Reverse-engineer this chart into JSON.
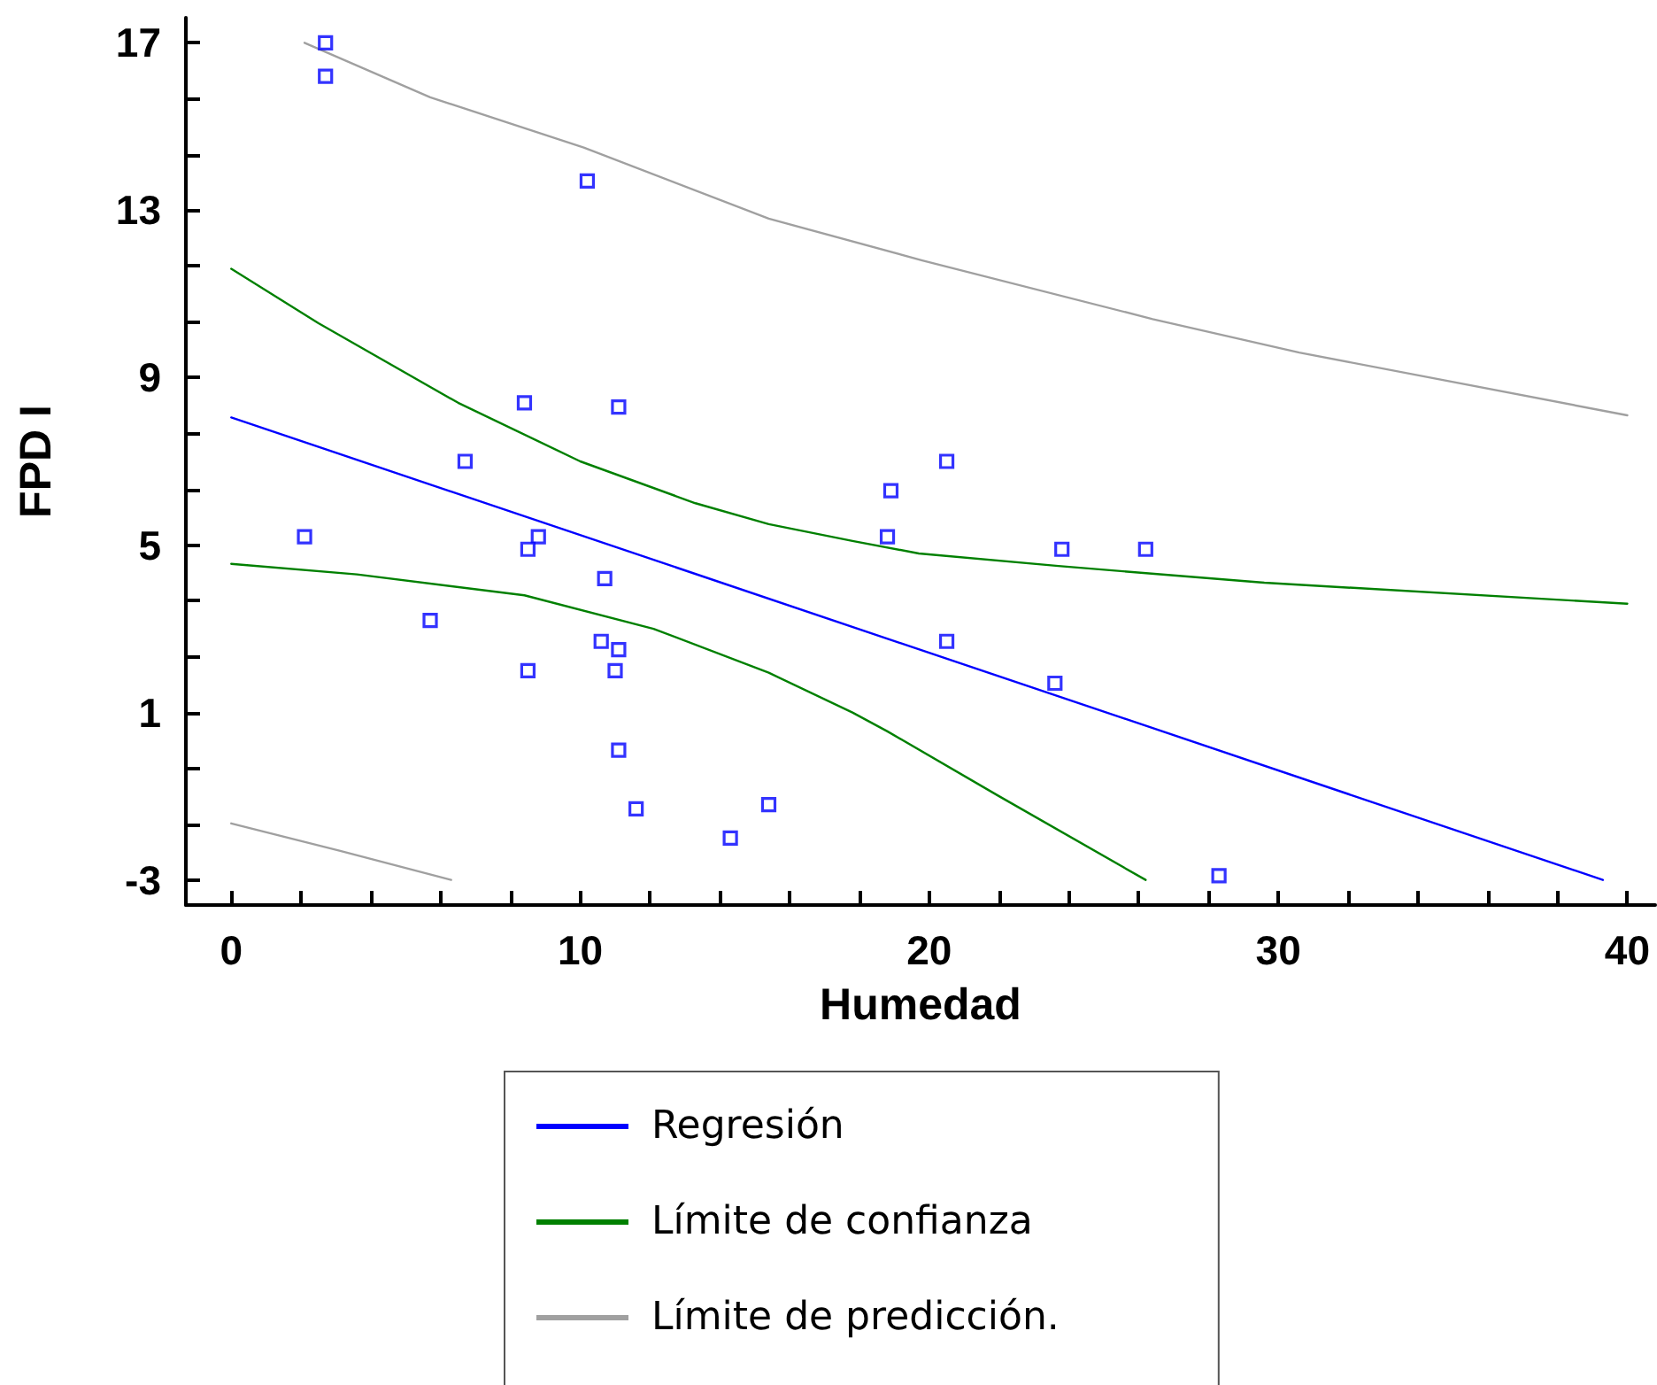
{
  "chart_data": {
    "type": "scatter",
    "xlabel": "Humedad",
    "ylabel": "FPD I",
    "xlim": [
      -1.3,
      40.8
    ],
    "ylim": [
      -3.6,
      17.6
    ],
    "xticks": [
      0,
      {
        "value": 2,
        "label": null
      },
      {
        "value": 4,
        "label": null
      },
      {
        "value": 6,
        "label": null
      },
      {
        "value": 8,
        "label": null
      },
      10,
      {
        "value": 12,
        "label": null
      },
      {
        "value": 14,
        "label": null
      },
      {
        "value": 16,
        "label": null
      },
      {
        "value": 18,
        "label": null
      },
      20,
      {
        "value": 22,
        "label": null
      },
      {
        "value": 24,
        "label": null
      },
      {
        "value": 26,
        "label": null
      },
      {
        "value": 28,
        "label": null
      },
      30,
      {
        "value": 32,
        "label": null
      },
      {
        "value": 34,
        "label": null
      },
      {
        "value": 36,
        "label": null
      },
      {
        "value": 38,
        "label": null
      },
      40
    ],
    "yticks": [
      -3,
      {
        "value": -1.67,
        "label": null
      },
      {
        "value": -0.33,
        "label": null
      },
      1,
      {
        "value": 2.33,
        "label": null
      },
      {
        "value": 3.67,
        "label": null
      },
      5,
      {
        "value": 6.33,
        "label": null
      },
      {
        "value": 7.67,
        "label": null
      },
      9,
      {
        "value": 10.33,
        "label": null
      },
      {
        "value": 11.67,
        "label": null
      },
      13,
      {
        "value": 14.33,
        "label": null
      },
      {
        "value": 15.67,
        "label": null
      },
      17
    ],
    "grid": false,
    "legend": "bottom",
    "series": [
      {
        "color": "#0000ff",
        "marker": "square",
        "x": [
          2.7,
          2.7,
          10.2,
          8.4,
          11.1,
          6.7,
          18.9,
          2.1,
          8.8,
          8.5,
          10.7,
          5.7,
          10.6,
          11.1,
          8.5,
          11,
          11.1,
          11.6,
          14.3,
          15.4,
          18.8,
          20.5,
          23.8,
          26.2,
          20.5,
          23.6,
          28.3
        ],
        "values": [
          17,
          16.2,
          13.7,
          8.4,
          8.3,
          7,
          6.3,
          5.2,
          5.2,
          4.9,
          4.2,
          3.2,
          2.7,
          2.5,
          2,
          2,
          0.1,
          -1.3,
          -2,
          -1.2,
          5.2,
          7,
          4.9,
          4.9,
          2.7,
          1.7,
          -2.9
        ]
      },
      {
        "type": "line",
        "name": "Regresión",
        "color": "#0000ff",
        "marker": "none",
        "x": [
          0,
          39.3
        ],
        "values": [
          8.05,
          -3
        ]
      },
      {
        "type": "line",
        "name": "Límite de confianza",
        "color": "#008000",
        "marker": "none",
        "x": [
          0,
          2.5,
          6.5,
          10,
          13.3,
          15.4,
          17.8,
          19.7,
          23.7,
          29.6,
          40
        ],
        "values": [
          11.6,
          10.3,
          8.4,
          7,
          6,
          5.5,
          5.1,
          4.8,
          4.5,
          4.1,
          3.6
        ]
      },
      {
        "type": "line",
        "color": "#008000",
        "marker": "none",
        "x": [
          0,
          3.6,
          8.4,
          12.1,
          15.4,
          17.8,
          18.8,
          22,
          26.2
        ],
        "values": [
          4.55,
          4.3,
          3.8,
          3,
          1.95,
          1,
          0.55,
          -1,
          -3
        ]
      },
      {
        "type": "line",
        "name": "Límite de predicción.",
        "color": "#a0a0a0",
        "marker": "none",
        "x": [
          2.1,
          5.7,
          10.1,
          15.4,
          19.8,
          26.4,
          30.6,
          40
        ],
        "values": [
          17,
          15.7,
          14.5,
          12.8,
          11.8,
          10.4,
          9.6,
          8.1
        ]
      },
      {
        "type": "line",
        "color": "#a0a0a0",
        "marker": "none",
        "x": [
          0,
          3.1,
          6.3
        ],
        "values": [
          -1.65,
          -2.3,
          -3
        ]
      }
    ]
  }
}
